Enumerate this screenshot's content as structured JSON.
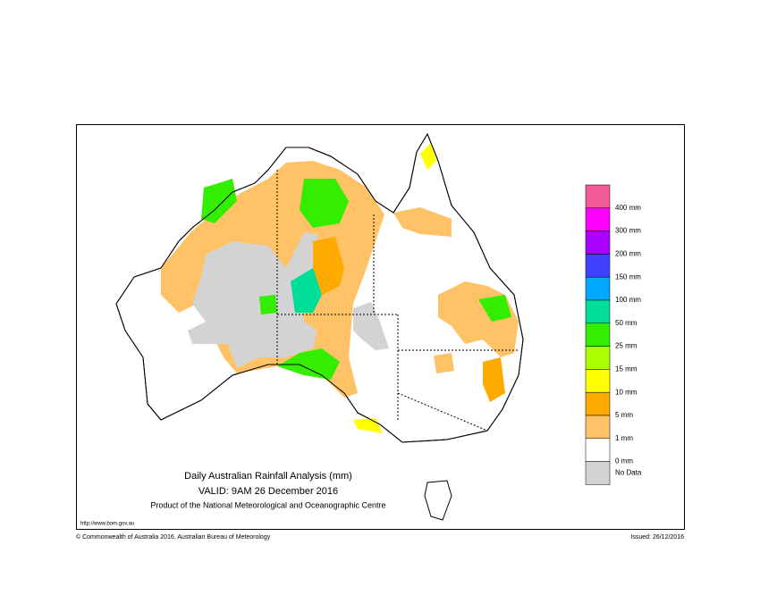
{
  "title": "Daily Australian Rainfall Analysis (mm)",
  "valid": "VALID: 9AM 26 December 2016",
  "product": "Product of the National Meteorological and Oceanographic Centre",
  "url": "http://www.bom.gov.au",
  "copyright": "© Commonwealth of Australia 2016, Australian Bureau of Meteorology",
  "issued": "Issued: 26/12/2016",
  "legend": {
    "colors": [
      "#f25a9a",
      "#ff00ff",
      "#aa00ff",
      "#4040ff",
      "#00a8ff",
      "#00dd99",
      "#33ee00",
      "#aaff00",
      "#ffff00",
      "#ffaa00",
      "#ffc266",
      "#ffffff"
    ],
    "labels": [
      "400 mm",
      "300 mm",
      "200 mm",
      "150 mm",
      "100 mm",
      "50 mm",
      "25 mm",
      "15 mm",
      "10 mm",
      "5 mm",
      "1 mm",
      "0 mm"
    ],
    "no_data": {
      "label": "No Data",
      "color": "#d3d3d3"
    }
  }
}
